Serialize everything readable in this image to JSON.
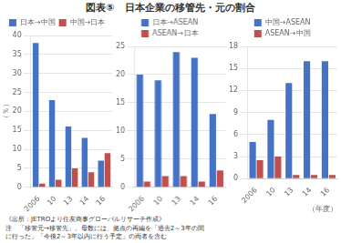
{
  "title": "図表⑤　日本企業の移管先・元の割合",
  "annotations": [
    "《出所：JETROより住友商事グローバルリサーチ作成》",
    "注　「移管元→移管先」。母数には、拠点の再編を「過去2～3年の間",
    "に行った」「今後2～3年以内に行う予定」の両者を含む"
  ],
  "chart_data": [
    {
      "type": "bar",
      "categories": [
        "2006",
        "10",
        "13",
        "14",
        "16"
      ],
      "series": [
        {
          "name": "日本→中国",
          "color": "#4472C4",
          "values": [
            38,
            23,
            16,
            13,
            7
          ]
        },
        {
          "name": "中国→日本",
          "color": "#C0504D",
          "values": [
            1,
            2,
            5,
            4,
            9
          ]
        }
      ],
      "ylim": [
        0,
        40
      ],
      "yticks": [
        0,
        5,
        10,
        15,
        20,
        25,
        30,
        35,
        40
      ],
      "ylabel": "（％）",
      "grid": true
    },
    {
      "type": "bar",
      "categories": [
        "2006",
        "10",
        "13",
        "14",
        "16"
      ],
      "series": [
        {
          "name": "日本→ASEAN",
          "color": "#4472C4",
          "values": [
            20,
            19,
            24,
            23,
            13
          ]
        },
        {
          "name": "ASEAN→日本",
          "color": "#C0504D",
          "values": [
            1,
            2,
            2,
            1,
            3
          ]
        }
      ],
      "ylim": [
        0,
        25
      ],
      "yticks": [
        0,
        5,
        10,
        15,
        20,
        25
      ],
      "grid": true
    },
    {
      "type": "bar",
      "categories": [
        "2006",
        "10",
        "13",
        "14",
        "16"
      ],
      "series": [
        {
          "name": "中国→ASEAN",
          "color": "#4472C4",
          "values": [
            5,
            8,
            13,
            16,
            16
          ]
        },
        {
          "name": "ASEAN→中国",
          "color": "#C0504D",
          "values": [
            2.5,
            3,
            0.5,
            0.5,
            0.5
          ]
        }
      ],
      "ylim": [
        0,
        18
      ],
      "yticks": [
        0,
        3,
        6,
        9,
        12,
        15,
        18
      ],
      "xlabel": "（年度）",
      "grid": true
    }
  ]
}
